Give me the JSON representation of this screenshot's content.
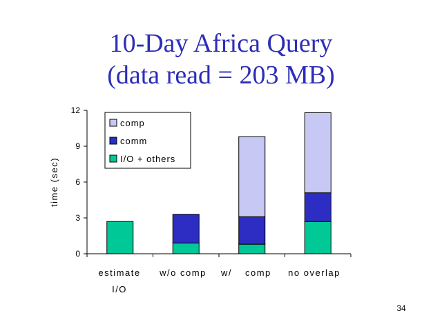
{
  "slide": {
    "title_line1": "10-Day Africa Query",
    "title_line2": "(data read = 203 MB)",
    "page_number": "34"
  },
  "colors": {
    "title": "#2d2db8",
    "comp": "#c8c8f4",
    "comm": "#2d2dc4",
    "io": "#00c896"
  },
  "chart_data": {
    "type": "bar",
    "stacked": true,
    "categories": [
      "estimate I/O",
      "w/o comp",
      "w/ comp",
      "no overlap"
    ],
    "series": [
      {
        "name": "I/O + others",
        "values": [
          2.7,
          0.9,
          0.8,
          2.7
        ]
      },
      {
        "name": "comm",
        "values": [
          0,
          2.4,
          2.3,
          2.4
        ]
      },
      {
        "name": "comp",
        "values": [
          0,
          0,
          6.7,
          6.7
        ]
      }
    ],
    "ylabel": "time (sec)",
    "xlabel": "",
    "ylim": [
      0,
      12
    ],
    "yticks": [
      0,
      3,
      6,
      9,
      12
    ],
    "legend_position": "top-left",
    "legend_entries": [
      "comp",
      "comm",
      "I/O + others"
    ],
    "grid": false
  }
}
